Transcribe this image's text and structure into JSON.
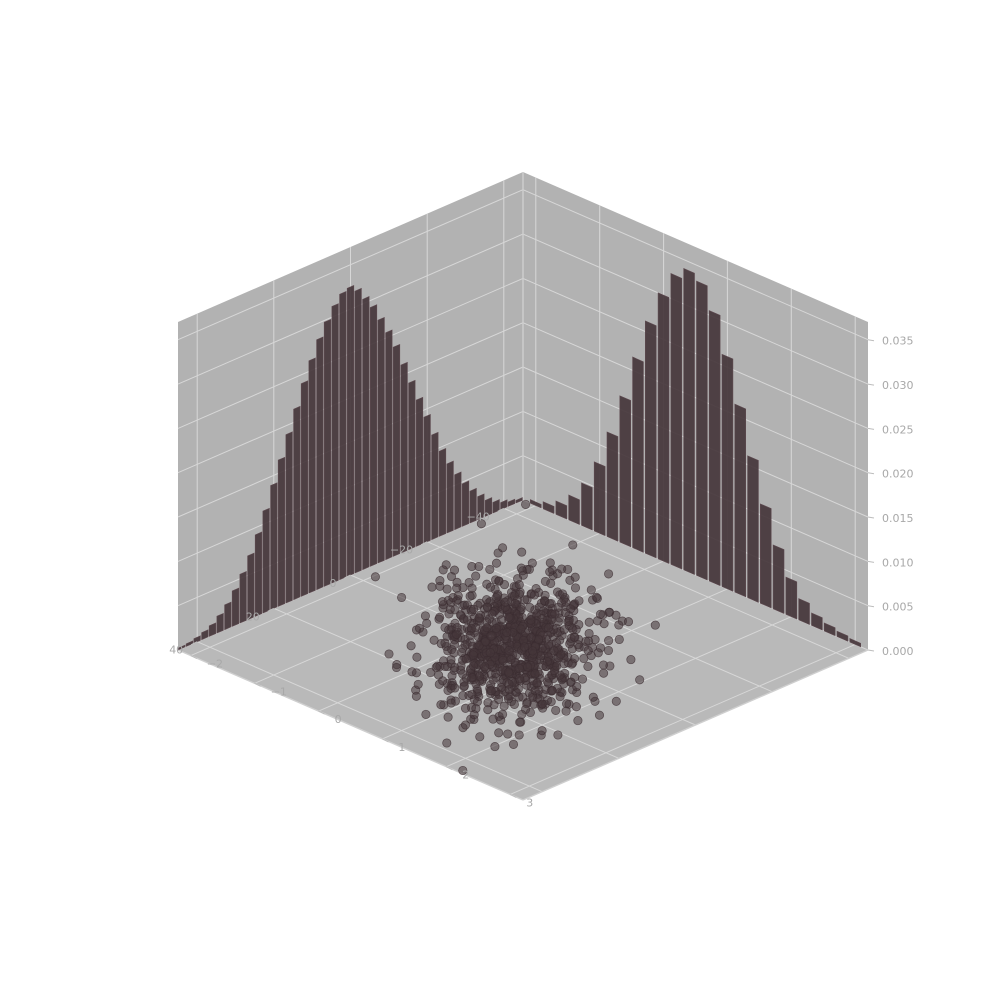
{
  "chart_data": {
    "type": "3d-scatter-with-marginal-histograms",
    "title": "",
    "xlabel": "",
    "ylabel": "",
    "zlabel": "",
    "x_axis": {
      "range": [
        -45,
        45
      ],
      "ticks": [
        -40,
        -20,
        0,
        20,
        40
      ],
      "tick_labels": [
        "−40",
        "−20",
        "0",
        "20",
        "40"
      ]
    },
    "y_axis": {
      "range": [
        -2.2,
        3.2
      ],
      "ticks": [
        -2,
        -1,
        0,
        1,
        2,
        3
      ],
      "tick_labels": [
        "−2",
        "−1",
        "0",
        "1",
        "2",
        "3"
      ]
    },
    "z_axis": {
      "range": [
        0,
        0.037
      ],
      "ticks": [
        0,
        0.005,
        0.01,
        0.015,
        0.02,
        0.025,
        0.03,
        0.035
      ],
      "tick_labels": [
        "0.000",
        "0.005",
        "0.010",
        "0.015",
        "0.020",
        "0.025",
        "0.030",
        "0.035"
      ]
    },
    "grid": true,
    "colors": {
      "pane": "#b2b2b2",
      "floor": "#b9b9b9",
      "marks": "#45363b",
      "grid": "#d7d7d7"
    },
    "scatter": {
      "description_counts": "points lie at z = 0 on the x-y floor, concentrated in an ellipse",
      "sample_points": [
        [
          -38.0,
          -1.0
        ],
        [
          -30.0,
          -0.6
        ],
        [
          -25.0,
          -0.9
        ],
        [
          -22.0,
          -0.2
        ],
        [
          -18.0,
          -0.4
        ],
        [
          -15.0,
          0.1
        ],
        [
          -12.0,
          -0.5
        ],
        [
          -10.0,
          0.3
        ],
        [
          -8.0,
          -0.2
        ],
        [
          -5.0,
          0.6
        ],
        [
          -3.0,
          -0.1
        ],
        [
          0.0,
          0.0
        ],
        [
          2.0,
          0.4
        ],
        [
          4.0,
          -0.3
        ],
        [
          6.0,
          0.8
        ],
        [
          8.0,
          0.2
        ],
        [
          10.0,
          0.5
        ],
        [
          12.0,
          1.0
        ],
        [
          15.0,
          0.6
        ],
        [
          18.0,
          1.2
        ],
        [
          20.0,
          0.9
        ],
        [
          22.0,
          1.5
        ],
        [
          25.0,
          1.1
        ],
        [
          28.0,
          1.8
        ],
        [
          30.0,
          1.4
        ],
        [
          -20.0,
          0.8
        ],
        [
          -14.0,
          1.0
        ],
        [
          -6.0,
          1.4
        ],
        [
          5.0,
          1.9
        ],
        [
          14.0,
          2.2
        ],
        [
          -28.0,
          -1.5
        ],
        [
          -16.0,
          -1.2
        ],
        [
          -4.0,
          -1.0
        ],
        [
          7.0,
          -0.7
        ],
        [
          16.0,
          -0.2
        ],
        [
          24.0,
          0.3
        ],
        [
          32.0,
          0.9
        ],
        [
          -34.0,
          -0.2
        ],
        [
          26.0,
          2.0
        ],
        [
          -10.0,
          -1.4
        ]
      ]
    },
    "hist_x": {
      "plane": "y = 3 (back-right wall)",
      "bin_centers": [
        -44,
        -42,
        -40,
        -38,
        -36,
        -34,
        -32,
        -30,
        -28,
        -26,
        -24,
        -22,
        -20,
        -18,
        -16,
        -14,
        -12,
        -10,
        -8,
        -6,
        -4,
        -2,
        0,
        2,
        4,
        6,
        8,
        10,
        12,
        14,
        16,
        18,
        20,
        22,
        24,
        26,
        28,
        30,
        32,
        34,
        36,
        38,
        40,
        42,
        44
      ],
      "density": [
        0.0003,
        0.0005,
        0.0008,
        0.0012,
        0.0018,
        0.0026,
        0.0036,
        0.0048,
        0.0062,
        0.0078,
        0.0096,
        0.0118,
        0.0142,
        0.0165,
        0.0188,
        0.0212,
        0.0236,
        0.0256,
        0.0274,
        0.0292,
        0.0305,
        0.0318,
        0.0325,
        0.0322,
        0.0312,
        0.0298,
        0.0282,
        0.0262,
        0.024,
        0.0215,
        0.019,
        0.0165,
        0.014,
        0.0115,
        0.0092,
        0.0072,
        0.0055,
        0.004,
        0.0028,
        0.0019,
        0.0012,
        0.0008,
        0.0005,
        0.0003,
        0.0002
      ]
    },
    "hist_y": {
      "plane": "x = -45 (back-left wall)",
      "bin_centers": [
        -2.0,
        -1.8,
        -1.6,
        -1.4,
        -1.2,
        -1.0,
        -0.8,
        -0.6,
        -0.4,
        -0.2,
        0.0,
        0.2,
        0.4,
        0.6,
        0.8,
        1.0,
        1.2,
        1.4,
        1.6,
        1.8,
        2.0,
        2.2,
        2.4,
        2.6,
        2.8,
        3.0
      ],
      "density": [
        0.0004,
        0.0008,
        0.0015,
        0.0028,
        0.0048,
        0.0078,
        0.0118,
        0.0165,
        0.0215,
        0.0262,
        0.03,
        0.0328,
        0.034,
        0.0332,
        0.0305,
        0.0262,
        0.0212,
        0.016,
        0.0112,
        0.0072,
        0.0042,
        0.0024,
        0.0014,
        0.0009,
        0.0006,
        0.0004
      ]
    }
  }
}
